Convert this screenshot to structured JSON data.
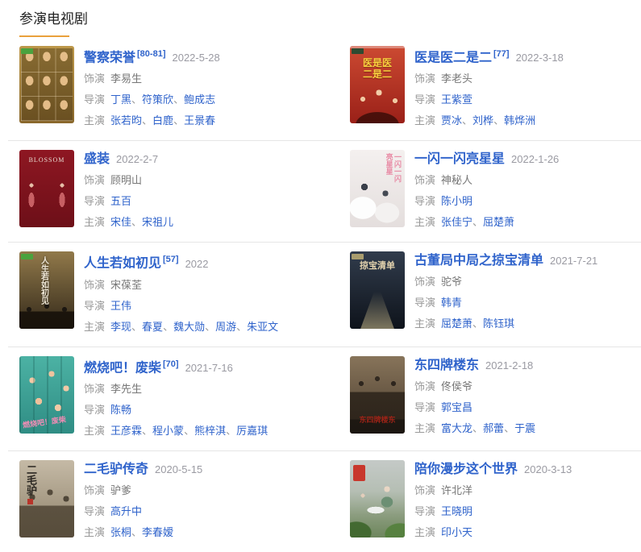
{
  "page": {
    "title": "参演电视剧"
  },
  "labels": {
    "role": "饰演",
    "director": "导演",
    "star": "主演",
    "separator": "、"
  },
  "colors": {
    "link": "#2f63cb",
    "accent_underline": "#e9a13b",
    "divider": "#e6e6e6",
    "label_gray": "#999999",
    "date_gray": "#9a9aa2",
    "role_gray": "#777777",
    "heading": "#222222"
  },
  "items": [
    {
      "title": "警察荣誉",
      "ref": "[80-81]",
      "date": "2022-5-28",
      "role": "李易生",
      "directors": [
        "丁黑",
        "符策欣",
        "鲍成志"
      ],
      "stars": [
        "张若昀",
        "白鹿",
        "王景春"
      ],
      "poster": {
        "type": "grid-faces",
        "bg1": "#bd984a",
        "bg2": "#8a682c",
        "badge": "#4aa23e",
        "text": "",
        "text_color": ""
      }
    },
    {
      "title": "医是医二是二",
      "ref": "[77]",
      "date": "2022-3-18",
      "role": "李老头",
      "directors": [
        "王紫萱"
      ],
      "stars": [
        "贾冰",
        "刘桦",
        "韩烨洲"
      ],
      "poster": {
        "type": "red-comedy",
        "bg1": "#cc4a32",
        "bg2": "#9a2018",
        "badge": "#2e4a31",
        "text": "医是医\n二是二",
        "text_color": "#f7d13e"
      }
    },
    {
      "title": "盛装",
      "ref": "",
      "date": "2022-2-7",
      "role": "顾明山",
      "directors": [
        "五百"
      ],
      "stars": [
        "宋佳",
        "宋祖儿"
      ],
      "poster": {
        "type": "blossom",
        "bg1": "#8e1722",
        "bg2": "#6d0f18",
        "badge": "",
        "text": "BLOSSOM",
        "text_color": "#e8dcd2"
      }
    },
    {
      "title": "一闪一闪亮星星",
      "ref": "",
      "date": "2022-1-26",
      "role": "神秘人",
      "directors": [
        "陈小明"
      ],
      "stars": [
        "张佳宁",
        "屈楚萧"
      ],
      "poster": {
        "type": "pastel-youth",
        "bg1": "#f4f0ef",
        "bg2": "#e4dedd",
        "badge": "",
        "text": "一闪一闪\n亮星星",
        "text_color": "#e88ca6"
      }
    },
    {
      "title": "人生若如初见",
      "ref": "[57]",
      "date": "2022",
      "role": "宋葆荃",
      "directors": [
        "王伟"
      ],
      "stars": [
        "李现",
        "春夏",
        "魏大勋",
        "周游",
        "朱亚文"
      ],
      "poster": {
        "type": "period-dark",
        "bg1": "#91794a",
        "bg2": "#33291a",
        "badge": "#4aa23e",
        "text": "人生若如初见",
        "text_color": "#efe7d6"
      }
    },
    {
      "title": "古董局中局之掠宝清单",
      "ref": "",
      "date": "2021-7-21",
      "role": "驼爷",
      "directors": [
        "韩青"
      ],
      "stars": [
        "屈楚萧",
        "陈钰琪"
      ],
      "poster": {
        "type": "antique",
        "bg1": "#313c4c",
        "bg2": "#0e131b",
        "badge": "#a99d6e",
        "text": "掠宝清单",
        "text_color": "#e3d3ae"
      }
    },
    {
      "title": "燃烧吧！废柴",
      "ref": "[70]",
      "date": "2021-7-16",
      "role": "李先生",
      "directors": [
        "陈畅"
      ],
      "stars": [
        "王彦霖",
        "程小蒙",
        "熊梓淇",
        "厉嘉琪"
      ],
      "poster": {
        "type": "teal-doors",
        "bg1": "#4cb2a4",
        "bg2": "#2f8d84",
        "badge": "",
        "text": "燃烧吧！废柴",
        "text_color": "#f08cb5"
      }
    },
    {
      "title": "东四牌楼东",
      "ref": "",
      "date": "2021-2-18",
      "role": "佟侯爷",
      "directors": [
        "郭宝昌"
      ],
      "stars": [
        "富大龙",
        "郝蕾",
        "于震"
      ],
      "poster": {
        "type": "sepia-group",
        "bg1": "#87745a",
        "bg2": "#4a3c2e",
        "badge": "",
        "text": "东四牌楼东",
        "text_color": "#9c2317"
      }
    },
    {
      "title": "二毛驴传奇",
      "ref": "",
      "date": "2020-5-15",
      "role": "驴爹",
      "directors": [
        "高升中"
      ],
      "stars": [
        "张桐",
        "李春嫒"
      ],
      "poster": {
        "type": "donkey",
        "bg1": "#c5baa6",
        "bg2": "#8d8069",
        "badge": "",
        "text": "二毛驴",
        "text_color": "#2b2722"
      }
    },
    {
      "title": "陪你漫步这个世界",
      "ref": "",
      "date": "2020-3-13",
      "role": "许北洋",
      "directors": [
        "王晓明"
      ],
      "stars": [
        "印小天"
      ],
      "poster": {
        "type": "street",
        "bg1": "#c3c8c5",
        "bg2": "#6e8a5a",
        "badge": "#c8372c",
        "text": "",
        "text_color": ""
      }
    }
  ]
}
